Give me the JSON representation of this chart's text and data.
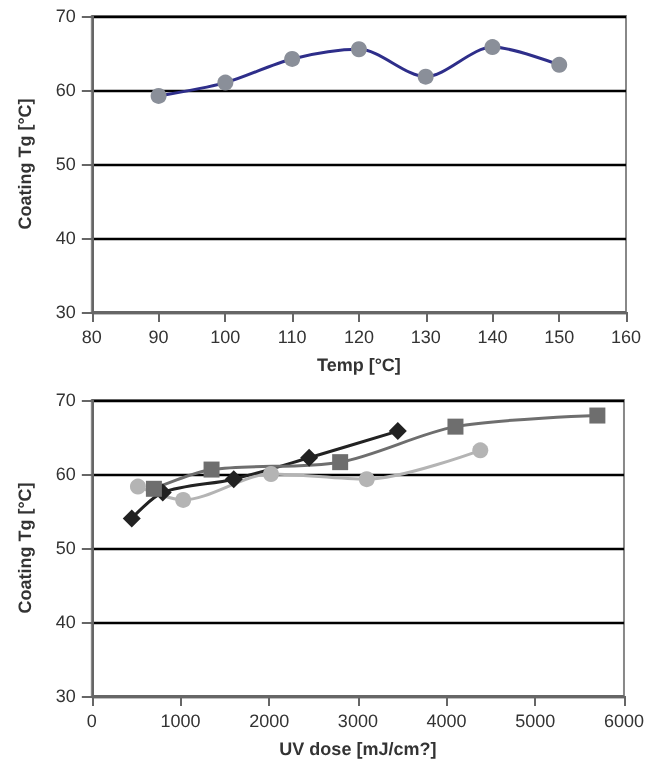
{
  "chart_data": [
    {
      "type": "line",
      "xlabel": "Temp [°C]",
      "ylabel": "Coating Tg [°C]",
      "x": [
        90,
        100,
        110,
        120,
        130,
        140,
        150
      ],
      "series": [
        {
          "color": "#2e2e8a",
          "values": [
            59.2,
            61,
            64.2,
            65.5,
            61.8,
            65.8,
            63.4
          ],
          "marker": "circle",
          "colors": [
            "#8a8f99",
            "#8a8f99",
            "#8a8f99",
            "#8a8f99",
            "#8a8f99",
            "#8a8f99",
            "#8a8f99"
          ]
        }
      ],
      "xlim": [
        80,
        160
      ],
      "xticks": [
        80,
        90,
        100,
        110,
        120,
        130,
        140,
        150,
        160
      ],
      "ylim": [
        30,
        70
      ],
      "yticks": [
        30,
        40,
        50,
        60,
        70
      ],
      "grid": "y"
    },
    {
      "type": "line",
      "xlabel": "UV dose [mJ/cm?]",
      "ylabel": "Coating Tg [°C]",
      "series": [
        {
          "color": "#222222",
          "marker": "diamond",
          "x": [
            450,
            800,
            1600,
            2450,
            3450
          ],
          "values": [
            54,
            57.5,
            59.3,
            62.2,
            65.8
          ]
        },
        {
          "color": "#6e6e6e",
          "marker": "square",
          "x": [
            700,
            1350,
            2800,
            4100,
            5700
          ],
          "values": [
            58,
            60.6,
            61.6,
            66.4,
            67.9
          ]
        },
        {
          "color": "#b4b4b4",
          "marker": "circle",
          "x": [
            520,
            1030,
            2020,
            3100,
            4380
          ],
          "values": [
            58.3,
            56.5,
            60,
            59.3,
            63.2
          ]
        }
      ],
      "xlim": [
        0,
        6000
      ],
      "xticks": [
        0,
        1000,
        2000,
        3000,
        4000,
        5000,
        6000
      ],
      "ylim": [
        30,
        70
      ],
      "yticks": [
        30,
        40,
        50,
        60,
        70
      ],
      "grid": "y"
    }
  ]
}
